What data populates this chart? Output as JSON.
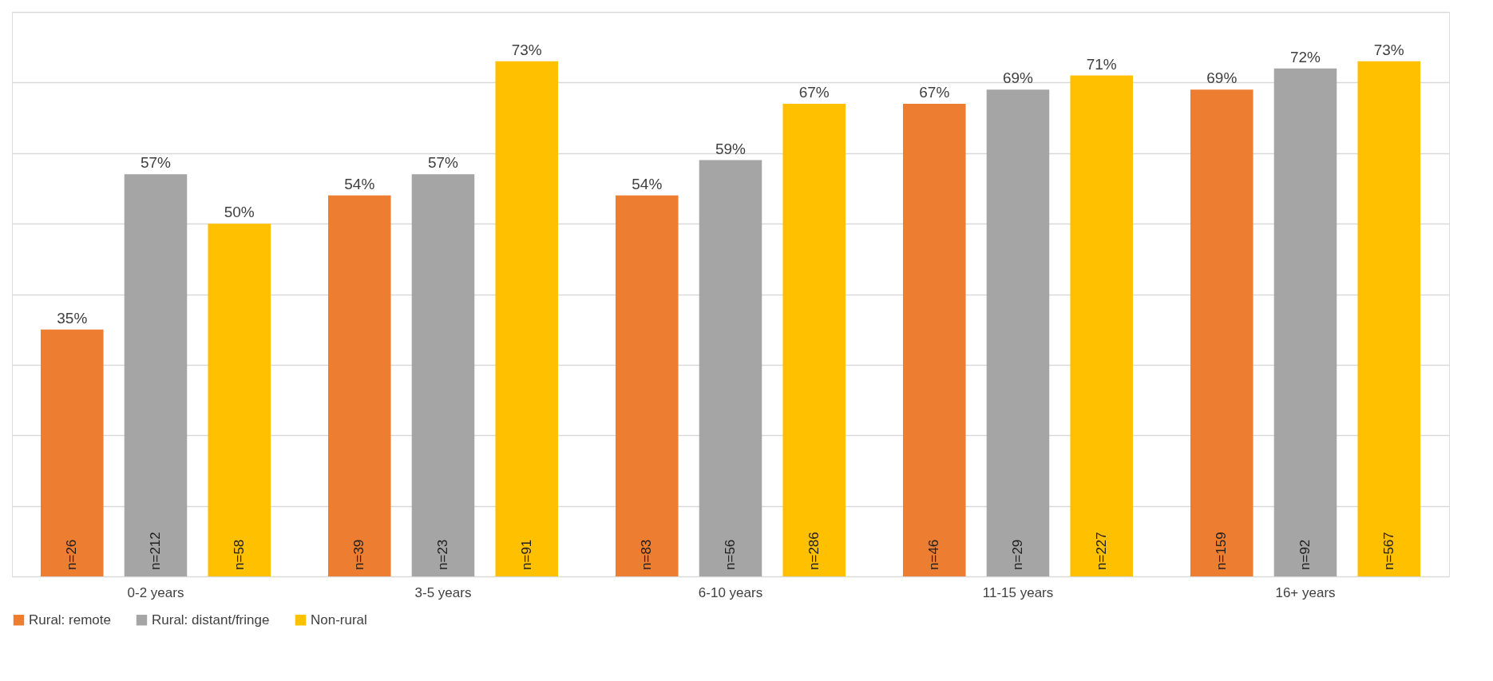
{
  "chart_data": {
    "type": "bar",
    "categories": [
      "0-2 years",
      "3-5 years",
      "6-10 years",
      "11-15 years",
      "16+ years"
    ],
    "series": [
      {
        "name": "Rural: remote",
        "color": "#ed7d31",
        "values": [
          35,
          54,
          54,
          67,
          69
        ],
        "value_labels": [
          "35%",
          "54%",
          "54%",
          "67%",
          "69%"
        ]
      },
      {
        "name": "Rural: distant/fringe",
        "color": "#a5a5a5",
        "values": [
          57,
          57,
          59,
          69,
          72
        ],
        "value_labels": [
          "57%",
          "57%",
          "59%",
          "69%",
          "72%"
        ]
      },
      {
        "name": "Non-rural",
        "color": "#ffc000",
        "values": [
          50,
          73,
          67,
          71,
          73
        ],
        "value_labels": [
          "50%",
          "73%",
          "67%",
          "71%",
          "73%"
        ]
      }
    ],
    "ylim": [
      0,
      80
    ],
    "yticks": [
      {
        "value": 0,
        "label": null
      },
      {
        "value": 10,
        "label": null
      },
      {
        "value": 20,
        "label": null
      },
      {
        "value": 30,
        "label": null
      },
      {
        "value": 40,
        "label": null
      },
      {
        "value": 50,
        "label": null
      },
      {
        "value": 60,
        "label": null
      },
      {
        "value": 70,
        "label": null
      },
      {
        "value": 80,
        "label": null
      }
    ],
    "grid": "y",
    "tick_labels": "x",
    "legend": "bottom",
    "annotations": [
      "n=26",
      "n=212",
      "n=58",
      "n=39",
      "n=23",
      "n=91",
      "n=83",
      "n=56",
      "n=286",
      "n=46",
      "n=29",
      "n=227",
      "n=159",
      "n=92",
      "n=567"
    ]
  }
}
